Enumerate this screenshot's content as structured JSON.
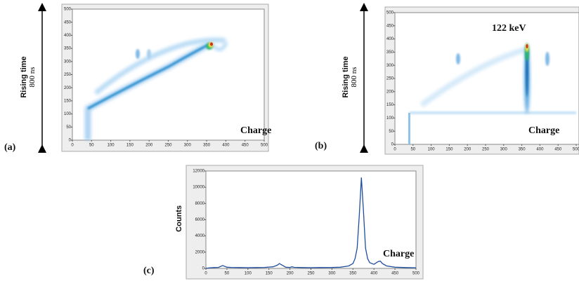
{
  "chart_data": [
    {
      "type": "density",
      "label": "(a)",
      "y_label": "Rising time",
      "y_sublabel": "800 ns",
      "annotation": "Charge",
      "xlim": [
        0,
        500
      ],
      "ylim": [
        0,
        500
      ],
      "xticks": [
        0,
        50,
        100,
        150,
        200,
        250,
        300,
        350,
        400,
        450,
        500
      ],
      "yticks": [
        0,
        50,
        100,
        150,
        200,
        250,
        300,
        350,
        400,
        450,
        500
      ]
    },
    {
      "type": "density",
      "label": "(b)",
      "y_label": "Rising time",
      "y_sublabel": "800 ns",
      "annotation": "Charge",
      "peak_label": "122 keV",
      "xlim": [
        0,
        500
      ],
      "ylim": [
        0,
        500
      ],
      "xticks": [
        0,
        50,
        100,
        150,
        200,
        250,
        300,
        350,
        400,
        450,
        500
      ],
      "yticks": [
        0,
        50,
        100,
        150,
        200,
        250,
        300,
        350,
        400,
        450,
        500
      ]
    },
    {
      "type": "line",
      "label": "(c)",
      "y_label": "Counts",
      "annotation": "Charge",
      "color": "#1f4e9e",
      "xlim": [
        0,
        500
      ],
      "ylim": [
        0,
        12000
      ],
      "xticks": [
        0,
        50,
        100,
        150,
        200,
        250,
        300,
        350,
        400,
        450,
        500
      ],
      "yticks": [
        0,
        2000,
        4000,
        6000,
        8000,
        10000,
        12000
      ],
      "x": [
        0,
        10,
        20,
        30,
        40,
        50,
        60,
        80,
        100,
        120,
        140,
        160,
        170,
        175,
        180,
        190,
        200,
        205,
        210,
        230,
        250,
        270,
        300,
        320,
        340,
        350,
        355,
        360,
        365,
        370,
        375,
        380,
        385,
        390,
        400,
        410,
        415,
        420,
        430,
        450,
        475,
        500
      ],
      "values": [
        0,
        80,
        100,
        120,
        350,
        150,
        120,
        100,
        90,
        100,
        120,
        200,
        400,
        600,
        450,
        150,
        120,
        200,
        130,
        100,
        90,
        100,
        110,
        150,
        300,
        600,
        1200,
        2500,
        6500,
        11200,
        7000,
        2500,
        1200,
        700,
        500,
        850,
        900,
        600,
        300,
        150,
        100,
        80
      ]
    }
  ]
}
